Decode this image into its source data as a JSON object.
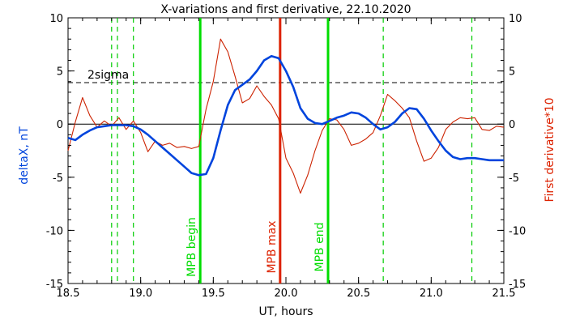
{
  "chart_data": {
    "type": "line",
    "title": "X-variations and first derivative, 22.10.2020",
    "xlabel": "UT, hours",
    "ylabel_left": "deltaX, nT",
    "ylabel_right": "First derivative*10",
    "xlim": [
      18.5,
      21.5
    ],
    "ylim": [
      -15,
      10
    ],
    "xticks": [
      "18.5",
      "19.0",
      "19.5",
      "20.0",
      "20.5",
      "21.0",
      "21.5"
    ],
    "yticks": [
      "10",
      "5",
      "0",
      "-5",
      "-10",
      "-15"
    ],
    "y2ticks": [
      "10",
      "5",
      "0",
      "-5",
      "-10",
      "-15"
    ],
    "threshold": {
      "label": "2sigma",
      "value": 3.9
    },
    "series": [
      {
        "color": "#0044dd",
        "x": [
          18.5,
          18.55,
          18.6,
          18.65,
          18.7,
          18.75,
          18.8,
          18.85,
          18.9,
          18.95,
          19.0,
          19.05,
          19.1,
          19.15,
          19.2,
          19.25,
          19.3,
          19.35,
          19.4,
          19.45,
          19.5,
          19.55,
          19.6,
          19.65,
          19.7,
          19.75,
          19.8,
          19.85,
          19.9,
          19.95,
          20.0,
          20.05,
          20.1,
          20.15,
          20.2,
          20.25,
          20.3,
          20.35,
          20.4,
          20.45,
          20.5,
          20.55,
          20.6,
          20.65,
          20.7,
          20.75,
          20.8,
          20.85,
          20.9,
          20.95,
          21.0,
          21.05,
          21.1,
          21.15,
          21.2,
          21.25,
          21.3,
          21.35,
          21.4,
          21.45,
          21.5
        ],
        "values": [
          -1.3,
          -1.5,
          -1.0,
          -0.6,
          -0.3,
          -0.2,
          -0.1,
          -0.1,
          -0.1,
          -0.2,
          -0.5,
          -1.0,
          -1.6,
          -2.2,
          -2.8,
          -3.4,
          -4.0,
          -4.6,
          -4.8,
          -4.7,
          -3.2,
          -0.6,
          1.8,
          3.2,
          3.7,
          4.2,
          5.0,
          6.0,
          6.4,
          6.2,
          5.0,
          3.5,
          1.5,
          0.5,
          0.1,
          0.0,
          0.3,
          0.6,
          0.8,
          1.1,
          1.0,
          0.6,
          0.0,
          -0.5,
          -0.3,
          0.2,
          1.0,
          1.5,
          1.4,
          0.5,
          -0.6,
          -1.6,
          -2.5,
          -3.1,
          -3.3,
          -3.2,
          -3.2,
          -3.3,
          -3.4,
          -3.4,
          -3.4
        ]
      },
      {
        "color": "#cc2200",
        "x": [
          18.5,
          18.55,
          18.6,
          18.65,
          18.7,
          18.75,
          18.8,
          18.85,
          18.9,
          18.95,
          19.0,
          19.05,
          19.1,
          19.15,
          19.2,
          19.25,
          19.3,
          19.35,
          19.4,
          19.45,
          19.5,
          19.55,
          19.6,
          19.65,
          19.7,
          19.75,
          19.8,
          19.85,
          19.9,
          19.95,
          20.0,
          20.05,
          20.1,
          20.15,
          20.2,
          20.25,
          20.3,
          20.35,
          20.4,
          20.45,
          20.5,
          20.55,
          20.6,
          20.65,
          20.7,
          20.75,
          20.8,
          20.85,
          20.9,
          20.95,
          21.0,
          21.05,
          21.1,
          21.15,
          21.2,
          21.25,
          21.3,
          21.35,
          21.4,
          21.45,
          21.5
        ],
        "values": [
          -2.5,
          0.2,
          2.5,
          0.8,
          -0.3,
          0.3,
          -0.2,
          0.6,
          -0.5,
          0.3,
          -0.8,
          -2.6,
          -1.6,
          -2.0,
          -1.8,
          -2.2,
          -2.1,
          -2.3,
          -2.1,
          1.4,
          4.0,
          8.0,
          6.8,
          4.5,
          2.0,
          2.4,
          3.6,
          2.6,
          1.8,
          0.5,
          -3.2,
          -4.6,
          -6.5,
          -4.8,
          -2.5,
          -0.6,
          0.5,
          0.4,
          -0.5,
          -2.0,
          -1.8,
          -1.4,
          -0.8,
          0.8,
          2.8,
          2.2,
          1.5,
          0.6,
          -1.6,
          -3.5,
          -3.2,
          -2.2,
          -0.5,
          0.2,
          0.6,
          0.5,
          0.6,
          -0.5,
          -0.6,
          -0.2,
          -0.3
        ]
      }
    ],
    "vertical_markers": [
      {
        "x": 18.8,
        "color": "#00cc00",
        "style": "dashed"
      },
      {
        "x": 18.84,
        "color": "#00cc00",
        "style": "dashed"
      },
      {
        "x": 18.95,
        "color": "#00cc00",
        "style": "dashed"
      },
      {
        "x": 19.41,
        "color": "#00dd00",
        "style": "solid",
        "label": "MPB begin"
      },
      {
        "x": 19.96,
        "color": "#dd2200",
        "style": "solid",
        "label": "MPB max"
      },
      {
        "x": 20.29,
        "color": "#00dd00",
        "style": "solid",
        "label": "MPB end"
      },
      {
        "x": 20.67,
        "color": "#00cc00",
        "style": "dashed"
      },
      {
        "x": 21.28,
        "color": "#00cc00",
        "style": "dashed"
      }
    ],
    "grid": false
  }
}
